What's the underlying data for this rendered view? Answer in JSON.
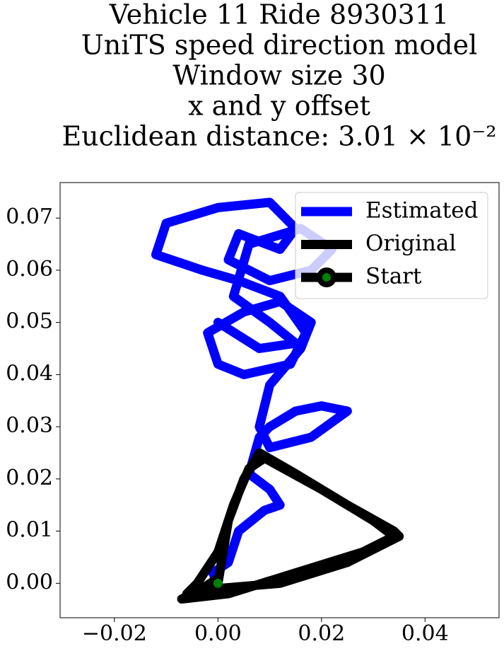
{
  "chart_data": {
    "type": "line",
    "title": [
      "Vehicle 11 Ride 8930311",
      "UniTS speed direction model",
      "Window size 30",
      "x and y offset",
      "Euclidean distance: 3.01 × 10⁻²"
    ],
    "xlim": [
      -0.0305,
      0.0543
    ],
    "ylim": [
      -0.0066,
      0.0768
    ],
    "xticks": [
      {
        "value": -0.02,
        "label": "−0.02"
      },
      {
        "value": 0,
        "label": "0.00"
      },
      {
        "value": 0.02,
        "label": "0.02"
      },
      {
        "value": 0.04,
        "label": "0.04"
      }
    ],
    "yticks": [
      {
        "value": 0,
        "label": "0.00"
      },
      {
        "value": 0.01,
        "label": "0.01"
      },
      {
        "value": 0.02,
        "label": "0.02"
      },
      {
        "value": 0.03,
        "label": "0.03"
      },
      {
        "value": 0.04,
        "label": "0.04"
      },
      {
        "value": 0.05,
        "label": "0.05"
      },
      {
        "value": 0.06,
        "label": "0.06"
      },
      {
        "value": 0.07,
        "label": "0.07"
      }
    ],
    "legend": "upper right",
    "series": [
      {
        "name": "Estimated",
        "color": "#0000ff",
        "x": [
          0,
          -0.001,
          0.002,
          0.004,
          0.009,
          0.012,
          0.01,
          0.006,
          0.008,
          0.01,
          0.015,
          0.02,
          0.025,
          0.018,
          0.01,
          0.008,
          0.01,
          0.016,
          0.018,
          0.012,
          0.005,
          -0.002,
          0.0,
          0.005,
          0.014,
          0.017,
          0.012,
          0.004,
          -0.003,
          -0.012,
          -0.01,
          0.0,
          0.01,
          0.015,
          0.012,
          0.004,
          0.002,
          0.01,
          0.018,
          0.022,
          0.016,
          0.006,
          0.003,
          0.01,
          0.015,
          0.008,
          0.0
        ],
        "y": [
          0,
          0.002,
          0.004,
          0.01,
          0.014,
          0.015,
          0.018,
          0.021,
          0.028,
          0.03,
          0.033,
          0.034,
          0.033,
          0.028,
          0.026,
          0.03,
          0.038,
          0.045,
          0.05,
          0.054,
          0.052,
          0.048,
          0.042,
          0.04,
          0.042,
          0.048,
          0.055,
          0.058,
          0.06,
          0.063,
          0.069,
          0.072,
          0.073,
          0.068,
          0.064,
          0.067,
          0.062,
          0.058,
          0.06,
          0.064,
          0.068,
          0.065,
          0.055,
          0.05,
          0.046,
          0.045,
          0.05
        ]
      },
      {
        "name": "Original",
        "color": "#000000",
        "x": [
          0,
          0.002,
          0.005,
          0.008,
          0.015,
          0.025,
          0.034,
          0.035,
          0.025,
          0.012,
          0.0,
          -0.006,
          -0.004,
          0.0,
          0.003,
          0.006,
          0.009,
          0.02,
          0.03,
          0.034,
          0.028,
          0.015,
          0.002,
          -0.007,
          -0.003,
          0.0
        ],
        "y": [
          0,
          0.012,
          0.02,
          0.025,
          0.021,
          0.015,
          0.01,
          0.009,
          0.004,
          0.0,
          -0.001,
          -0.002,
          0.0,
          0.006,
          0.015,
          0.022,
          0.024,
          0.018,
          0.012,
          0.009,
          0.006,
          0.002,
          -0.002,
          -0.003,
          -0.001,
          0.001
        ]
      },
      {
        "name": "Start",
        "color": "#008000",
        "x": [
          0
        ],
        "y": [
          0
        ]
      }
    ]
  }
}
